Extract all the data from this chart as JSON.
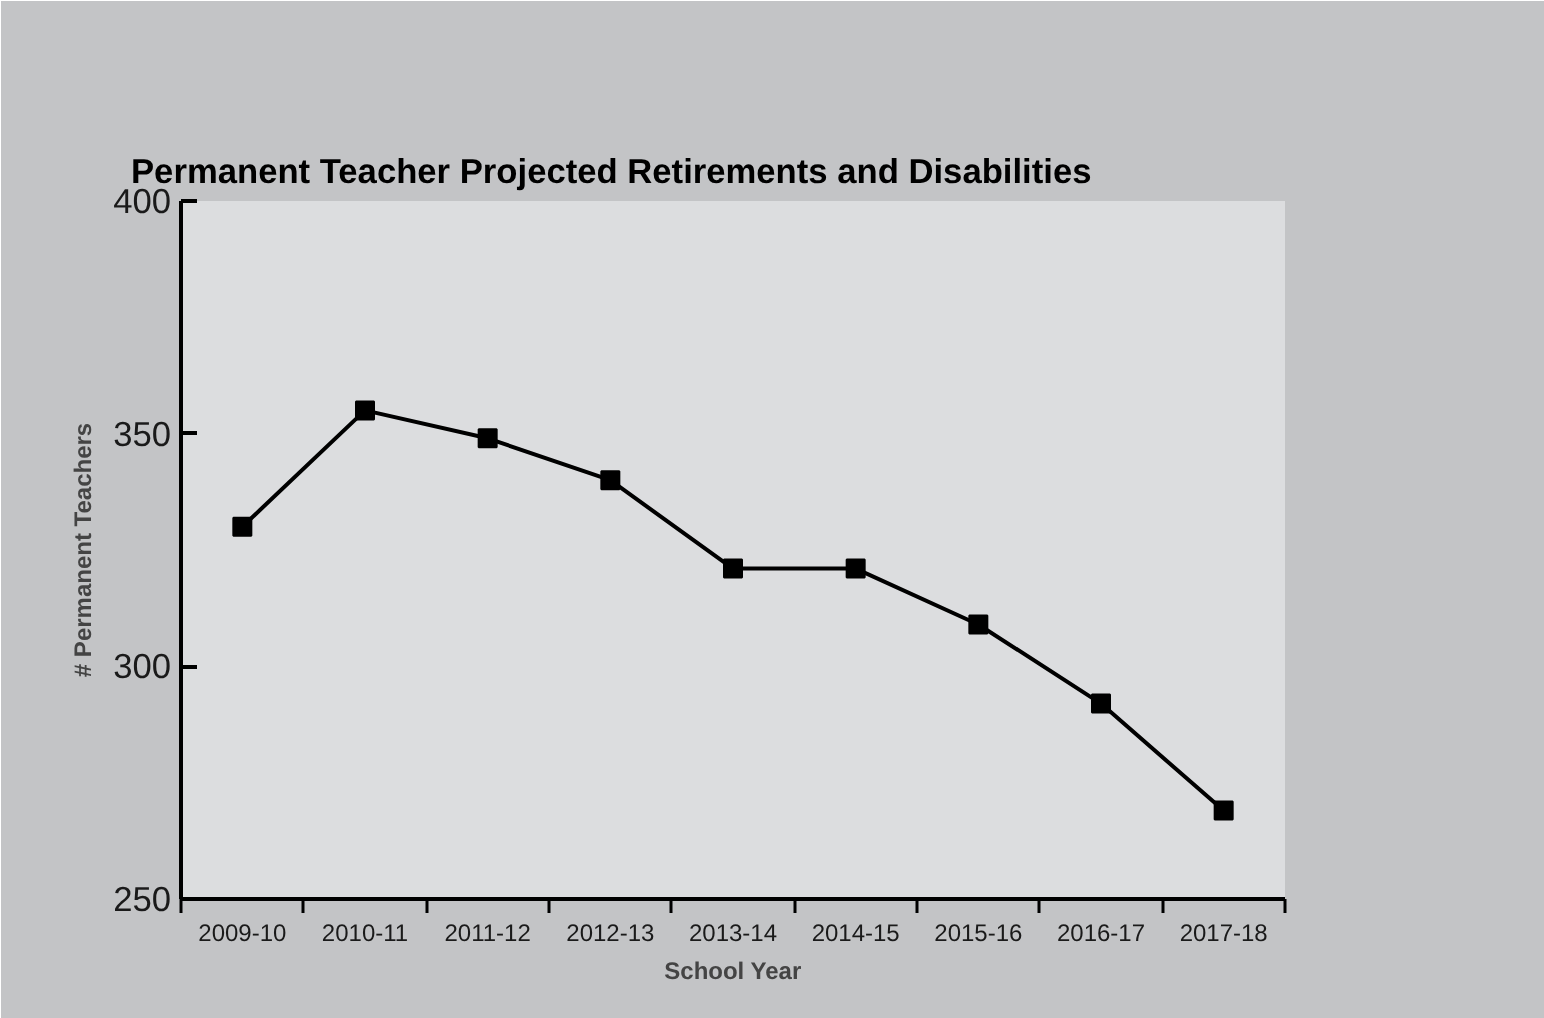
{
  "chart_data": {
    "type": "line",
    "title": "Permanent Teacher Projected Retirements and Disabilities",
    "xlabel": "School Year",
    "ylabel": "# Permanent Teachers",
    "categories": [
      "2009-10",
      "2010-11",
      "2011-12",
      "2012-13",
      "2013-14",
      "2014-15",
      "2015-16",
      "2016-17",
      "2017-18"
    ],
    "series": [
      {
        "color": "#000000",
        "values": [
          330,
          355,
          349,
          340,
          321,
          321,
          309,
          292,
          269
        ]
      }
    ],
    "ylim": [
      250,
      400
    ],
    "yticks": [
      250,
      300,
      350,
      400
    ],
    "grid": false,
    "marker": "square",
    "line_style": "solid"
  }
}
